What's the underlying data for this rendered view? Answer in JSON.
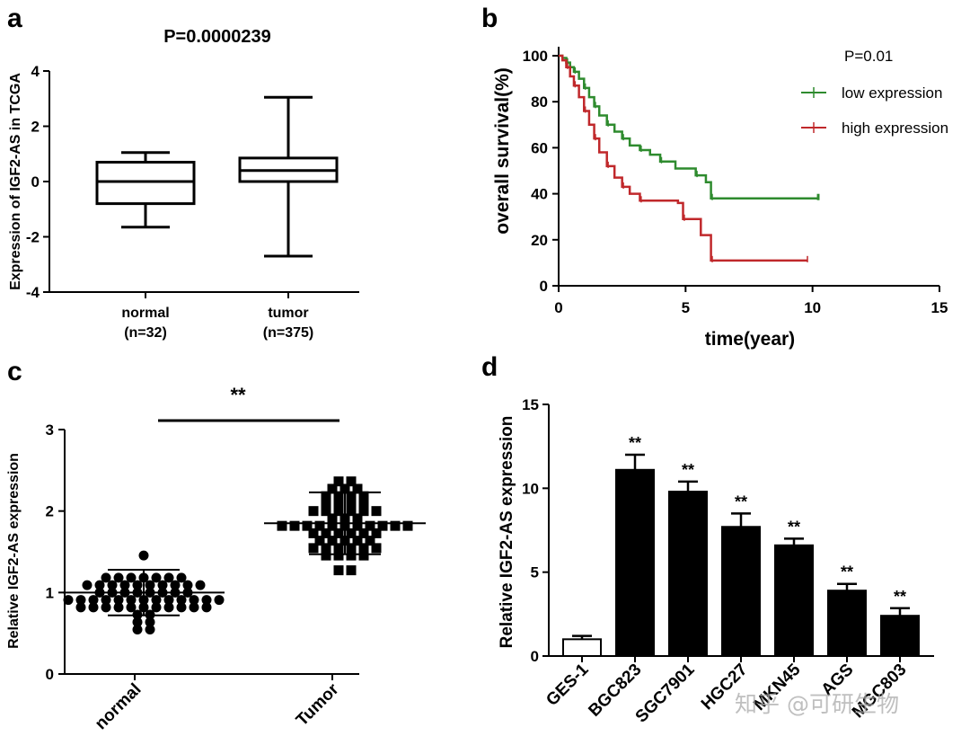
{
  "panels": {
    "a": {
      "label": "a"
    },
    "b": {
      "label": "b"
    },
    "c": {
      "label": "c"
    },
    "d": {
      "label": "d"
    }
  },
  "watermark": "知乎 @可研生物",
  "chart_data": [
    {
      "panel": "a",
      "type": "box",
      "title": "P=0.0000239",
      "ylabel": "Expression of IGF2-AS in TCGA",
      "ylim": [
        -4,
        4
      ],
      "yticks": [
        "-4",
        "-2",
        "0",
        "2",
        "4"
      ],
      "categories": [
        {
          "name": "normal",
          "n": "(n=32)"
        },
        {
          "name": "tumor",
          "n": "(n=375)"
        }
      ],
      "boxes": [
        {
          "min": -1.65,
          "q1": -0.8,
          "median": 0.0,
          "q3": 0.7,
          "max": 1.05
        },
        {
          "min": -2.7,
          "q1": 0.0,
          "median": 0.4,
          "q3": 0.85,
          "max": 3.05
        }
      ]
    },
    {
      "panel": "b",
      "type": "line",
      "subtype": "kaplan-meier",
      "annotation": "P=0.01",
      "xlabel": "time(year)",
      "ylabel": "overall survival(%)",
      "xlim": [
        0,
        15
      ],
      "ylim": [
        0,
        100
      ],
      "xticks": [
        "0",
        "5",
        "10",
        "15"
      ],
      "yticks": [
        "0",
        "20",
        "40",
        "60",
        "80",
        "100"
      ],
      "series": [
        {
          "name": "low expression",
          "color": "#2e8b2e",
          "x": [
            0,
            0.15,
            0.3,
            0.45,
            0.6,
            0.8,
            1.0,
            1.2,
            1.4,
            1.6,
            1.9,
            2.2,
            2.5,
            2.8,
            3.2,
            3.6,
            4.0,
            4.6,
            5.4,
            5.8,
            6.0,
            8.0,
            10.2
          ],
          "y": [
            100,
            99,
            97,
            95,
            93,
            90,
            86,
            82,
            78,
            74,
            70,
            67,
            64,
            61,
            59,
            57,
            54,
            51,
            48,
            45,
            38,
            38,
            38
          ]
        },
        {
          "name": "high expression",
          "color": "#c0282b",
          "x": [
            0,
            0.15,
            0.3,
            0.45,
            0.6,
            0.8,
            1.0,
            1.2,
            1.4,
            1.6,
            1.9,
            2.2,
            2.5,
            2.8,
            3.2,
            4.7,
            4.9,
            5.6,
            6.0,
            9.8
          ],
          "y": [
            100,
            98,
            95,
            91,
            87,
            82,
            76,
            70,
            64,
            58,
            52,
            47,
            43,
            40,
            37,
            36,
            29,
            22,
            11,
            11
          ]
        }
      ]
    },
    {
      "panel": "c",
      "type": "scatter",
      "significance": "**",
      "ylabel": "Relative IGF2-AS expression",
      "ylim": [
        0,
        3
      ],
      "yticks": [
        "0",
        "1",
        "2",
        "3"
      ],
      "categories": [
        "normal",
        "Tumor"
      ],
      "groups": [
        {
          "name": "normal",
          "mean": 1.0,
          "sd": 0.28
        },
        {
          "name": "Tumor",
          "mean": 1.85,
          "sd": 0.38
        }
      ]
    },
    {
      "panel": "d",
      "type": "bar",
      "ylabel": "Relative IGF2-AS expression",
      "ylim": [
        0,
        15
      ],
      "yticks": [
        "0",
        "5",
        "10",
        "15"
      ],
      "categories": [
        "GES-1",
        "BGC823",
        "SGC7901",
        "HGC27",
        "MKN45",
        "AGS",
        "MGC803"
      ],
      "values": [
        1.0,
        11.1,
        9.8,
        7.7,
        6.6,
        3.9,
        2.4
      ],
      "errors": [
        0.2,
        0.9,
        0.6,
        0.8,
        0.4,
        0.4,
        0.45
      ],
      "annotations": [
        "",
        "**",
        "**",
        "**",
        "**",
        "**",
        "**"
      ]
    }
  ]
}
